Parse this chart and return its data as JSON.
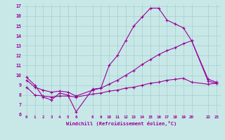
{
  "xlabel": "Windchill (Refroidissement éolien,°C)",
  "xlim": [
    -0.5,
    23.5
  ],
  "ylim": [
    6,
    17.2
  ],
  "xticks": [
    0,
    1,
    2,
    3,
    4,
    5,
    6,
    8,
    9,
    10,
    11,
    12,
    13,
    14,
    15,
    16,
    17,
    18,
    19,
    20,
    22,
    23
  ],
  "yticks": [
    6,
    7,
    8,
    9,
    10,
    11,
    12,
    13,
    14,
    15,
    16,
    17
  ],
  "background_color": "#c8e8e8",
  "grid_color": "#a8cccc",
  "line_color": "#990099",
  "line1_x": [
    0,
    1,
    2,
    3,
    4,
    5,
    6,
    8,
    9,
    10,
    11,
    12,
    13,
    14,
    15,
    16,
    17,
    18,
    19,
    20,
    22,
    23
  ],
  "line1_y": [
    9.8,
    9.0,
    7.8,
    7.5,
    8.2,
    8.0,
    6.3,
    8.6,
    8.7,
    11.0,
    12.0,
    13.5,
    15.0,
    15.9,
    16.8,
    16.8,
    15.6,
    15.2,
    14.8,
    13.5,
    9.6,
    9.3
  ],
  "line2_x": [
    0,
    1,
    2,
    3,
    4,
    5,
    6,
    8,
    9,
    10,
    11,
    12,
    13,
    14,
    15,
    16,
    17,
    18,
    19,
    20,
    22,
    23
  ],
  "line2_y": [
    9.5,
    8.8,
    8.5,
    8.3,
    8.4,
    8.3,
    7.9,
    8.5,
    8.7,
    9.1,
    9.5,
    10.0,
    10.5,
    11.1,
    11.6,
    12.1,
    12.5,
    12.8,
    13.2,
    13.5,
    9.4,
    9.2
  ],
  "line3_x": [
    0,
    1,
    2,
    3,
    4,
    5,
    6,
    8,
    9,
    10,
    11,
    12,
    13,
    14,
    15,
    16,
    17,
    18,
    19,
    20,
    22,
    23
  ],
  "line3_y": [
    8.8,
    8.0,
    7.9,
    7.8,
    7.9,
    7.9,
    7.8,
    8.1,
    8.2,
    8.4,
    8.5,
    8.7,
    8.8,
    9.0,
    9.2,
    9.3,
    9.5,
    9.6,
    9.7,
    9.3,
    9.1,
    9.2
  ],
  "marker": "+",
  "markersize": 3,
  "linewidth": 0.8
}
